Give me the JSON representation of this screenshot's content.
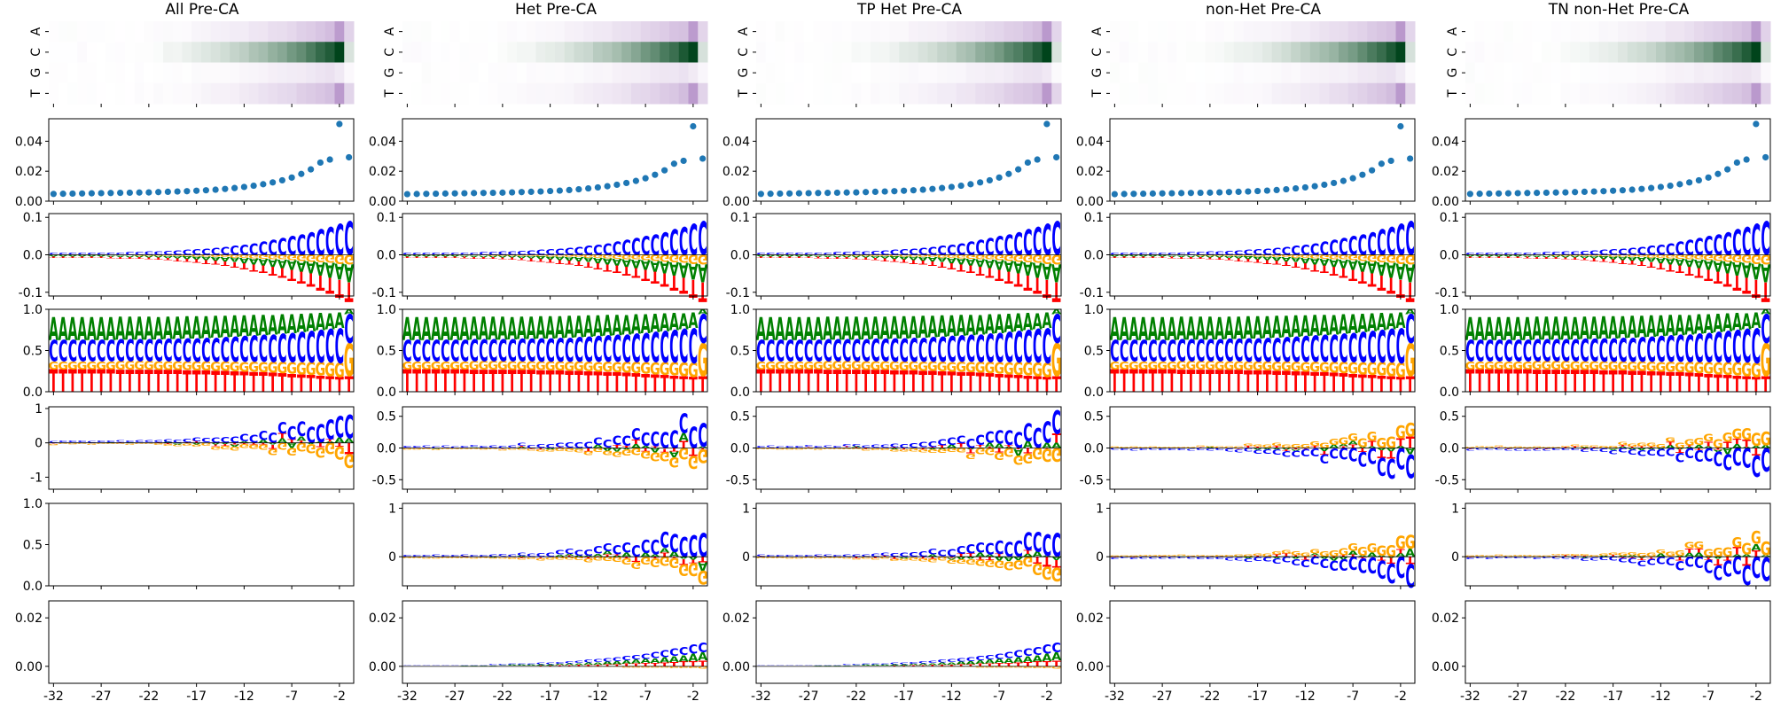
{
  "chart_data": {
    "type": "heatmap",
    "columns": [
      "All Pre-CA",
      "Het Pre-CA",
      "TP Het Pre-CA",
      "non-Het Pre-CA",
      "TN non-Het Pre-CA"
    ],
    "positions": [
      -32,
      -31,
      -30,
      -29,
      -28,
      -27,
      -26,
      -25,
      -24,
      -23,
      -22,
      -21,
      -20,
      -19,
      -18,
      -17,
      -16,
      -15,
      -14,
      -13,
      -12,
      -11,
      -10,
      -9,
      -8,
      -7,
      -6,
      -5,
      -4,
      -3,
      -2,
      -1
    ],
    "x_tick_labels": [
      "-32",
      "-27",
      "-22",
      "-17",
      "-12",
      "-7",
      "-2"
    ],
    "heatmap_rows": [
      "A",
      "C",
      "G",
      "T"
    ],
    "colors": {
      "A": "#008000",
      "C": "#0000ff",
      "G": "#ffa500",
      "T": "#ff0000",
      "scatter": "#1f77b4",
      "heat_pos": "#00441b",
      "heat_neg": "#9e6fb8"
    },
    "rows": [
      {
        "kind": "heatmap",
        "ylim": [
          0,
          4
        ],
        "yticks": [
          "A",
          "C",
          "G",
          "T"
        ]
      },
      {
        "kind": "scatter",
        "ylim": [
          0,
          0.055
        ],
        "yticks": [
          "0.00",
          "0.02",
          "0.04"
        ],
        "values": [
          [
            0.0048,
            0.0049,
            0.005,
            0.0051,
            0.0052,
            0.0053,
            0.0054,
            0.0055,
            0.0056,
            0.0057,
            0.0058,
            0.006,
            0.0062,
            0.0064,
            0.0066,
            0.0069,
            0.0072,
            0.0076,
            0.0081,
            0.0087,
            0.0094,
            0.0102,
            0.0112,
            0.0124,
            0.0138,
            0.0156,
            0.018,
            0.021,
            0.0255,
            0.0275,
            0.051,
            0.029
          ]
        ]
      },
      {
        "kind": "logo",
        "ylim": [
          -0.11,
          0.11
        ],
        "yticks": [
          "-0.1",
          "0.0",
          "0.1"
        ]
      },
      {
        "kind": "logo",
        "ylim": [
          0,
          1.0
        ],
        "yticks": [
          "0.0",
          "0.5",
          "1.0"
        ]
      },
      {
        "kind": "logo",
        "ylim_per_col": [
          [
            -1.35,
            1.05
          ],
          [
            -0.65,
            0.65
          ],
          [
            -0.65,
            0.65
          ],
          [
            -0.65,
            0.65
          ],
          [
            -0.65,
            0.65
          ]
        ],
        "yticks_per_col": [
          [
            "-1",
            "0",
            "1"
          ],
          [
            "-0.5",
            "0.0",
            "0.5"
          ],
          [
            "-0.5",
            "0.0",
            "0.5"
          ],
          [
            "-0.5",
            "0.0",
            "0.5"
          ],
          [
            "-0.5",
            "0.0",
            "0.5"
          ]
        ]
      },
      {
        "kind": "logo",
        "ylim_per_col": [
          [
            0,
            1.0
          ],
          [
            -0.6,
            1.1
          ],
          [
            -0.6,
            1.1
          ],
          [
            -0.6,
            1.1
          ],
          [
            -0.6,
            1.1
          ]
        ],
        "yticks_per_col": [
          [
            "0.0",
            "0.5",
            "1.0"
          ],
          [
            "0",
            "1"
          ],
          [
            "0",
            "1"
          ],
          [
            "0",
            "1"
          ],
          [
            "0",
            "1"
          ]
        ],
        "empty_cols": [
          0
        ]
      },
      {
        "kind": "logo",
        "ylim": [
          -0.007,
          0.027
        ],
        "yticks": [
          "0.00",
          "0.02"
        ],
        "empty_cols": [
          0,
          3,
          4
        ]
      }
    ]
  }
}
